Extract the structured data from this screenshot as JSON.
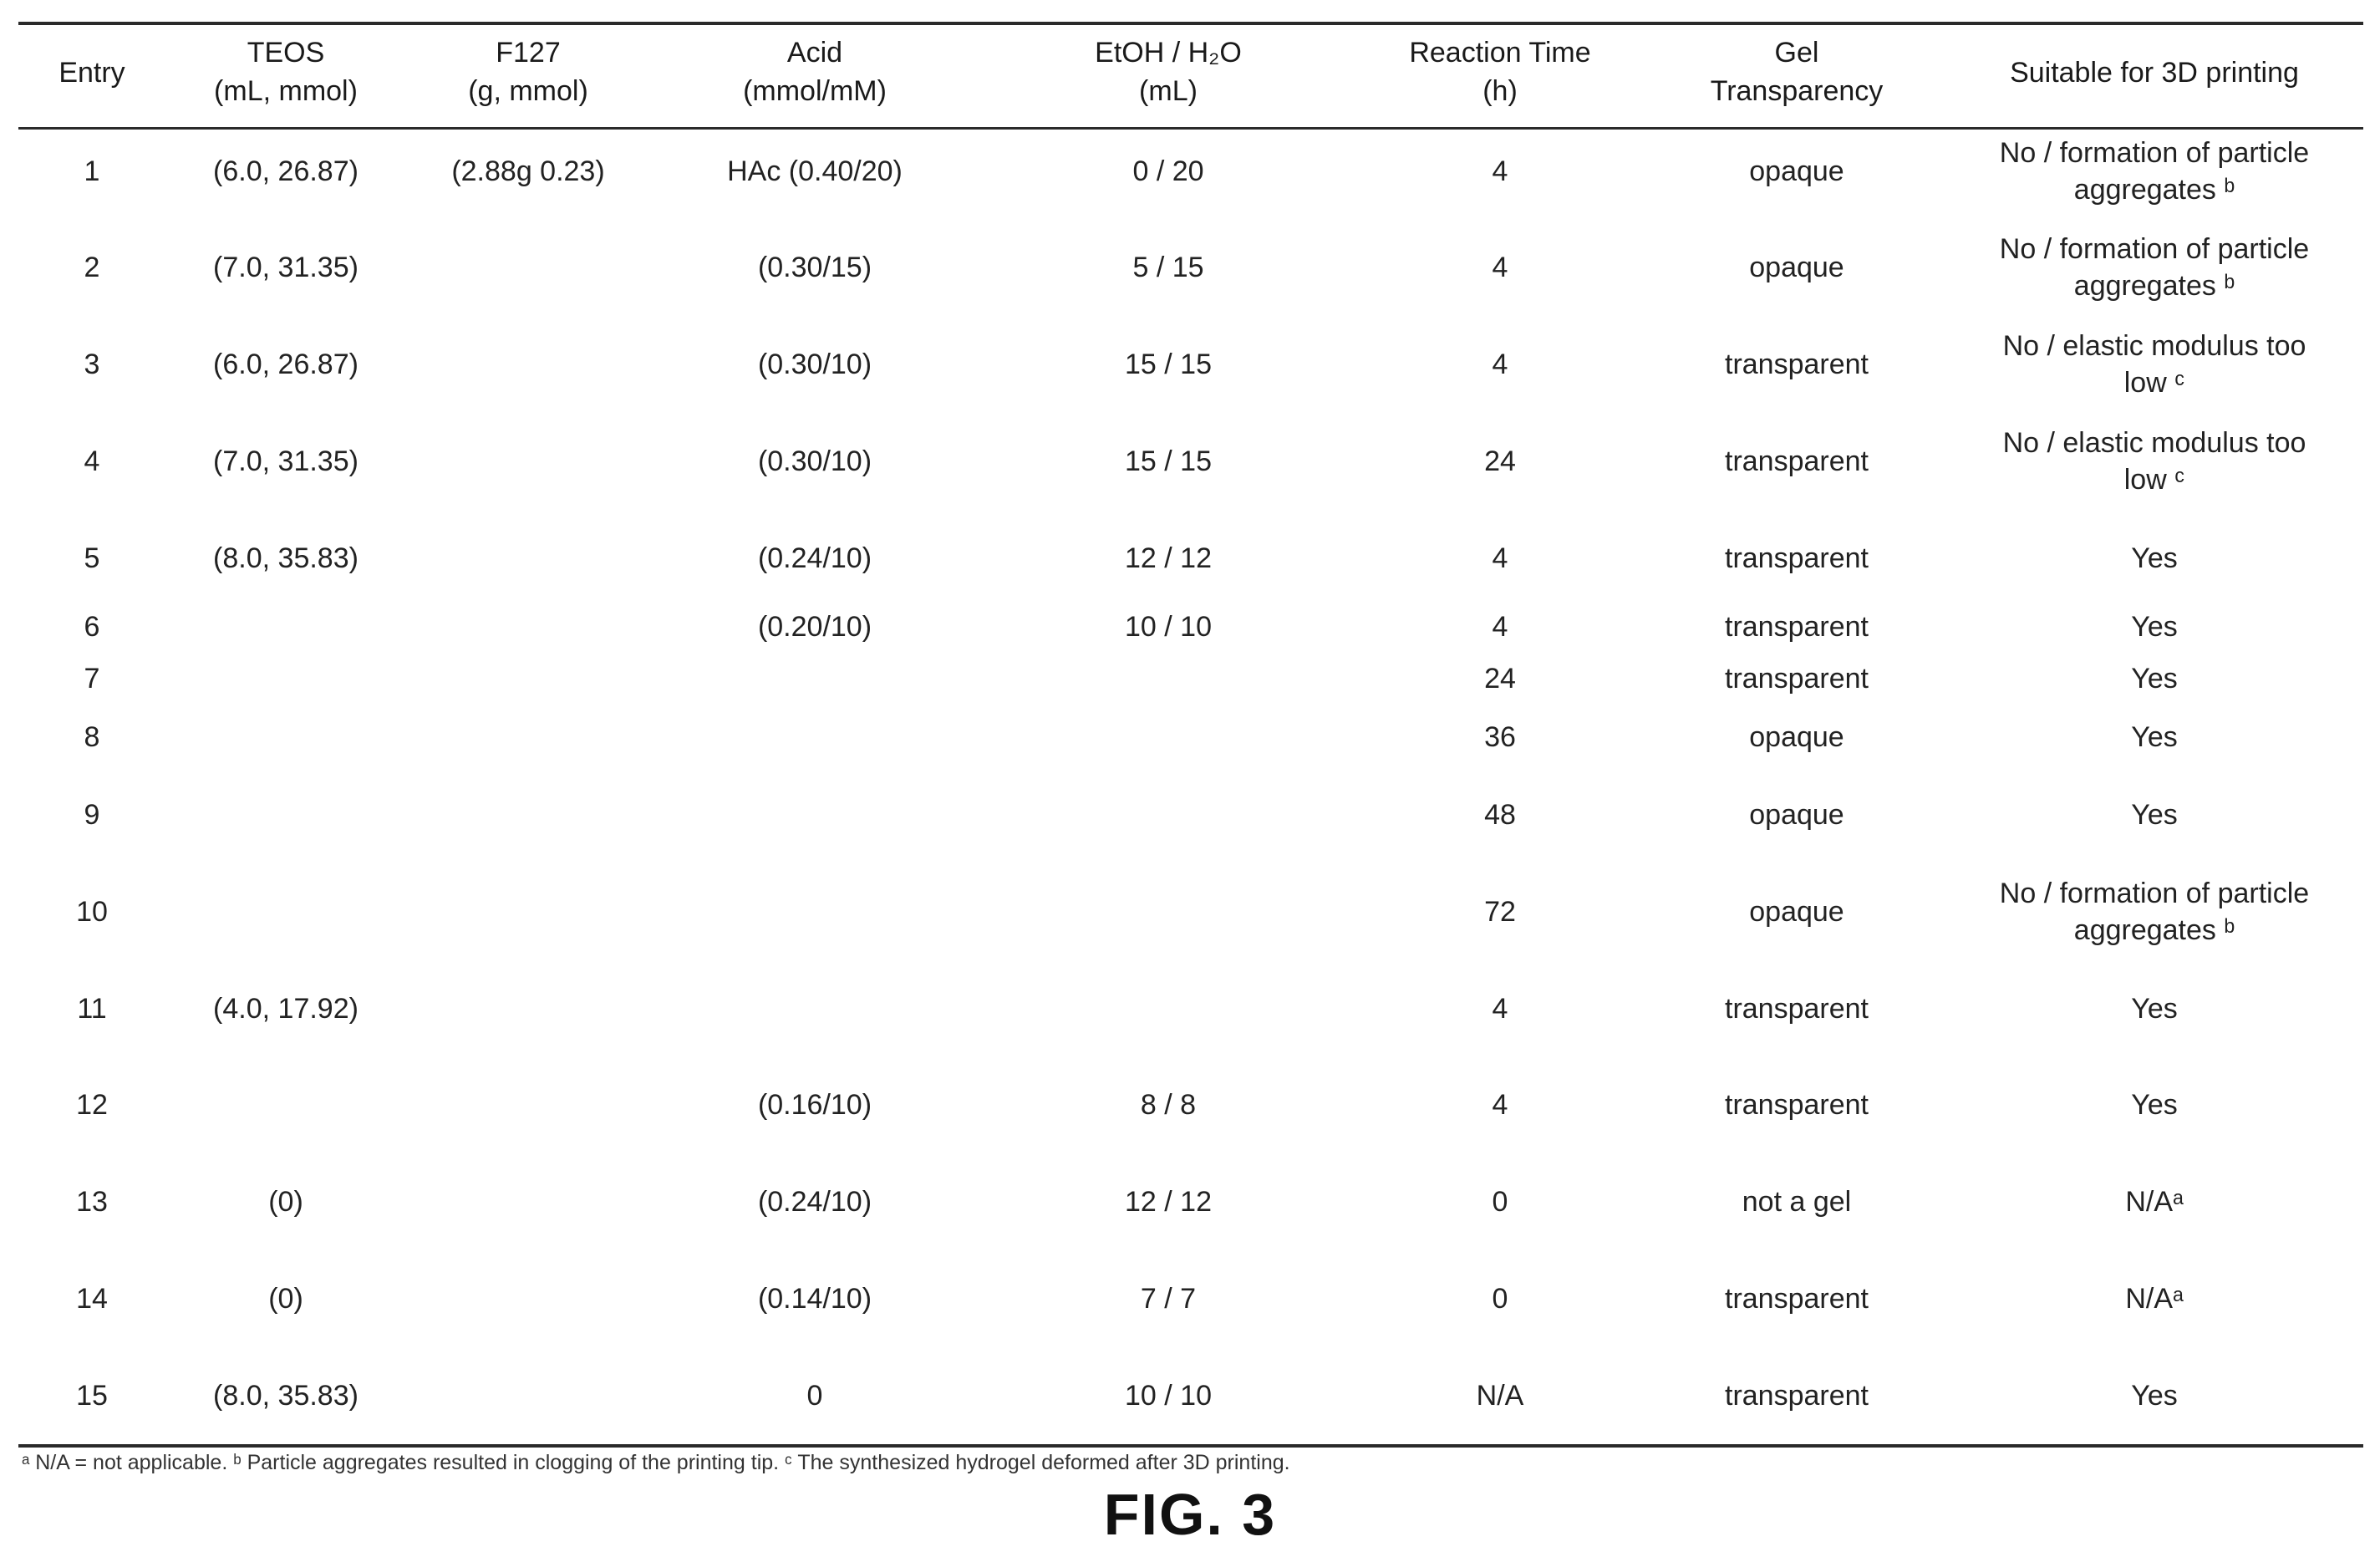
{
  "headers": [
    {
      "line1": "Entry",
      "line2": ""
    },
    {
      "line1": "TEOS",
      "line2": "(mL, mmol)"
    },
    {
      "line1": "F127",
      "line2": "(g, mmol)"
    },
    {
      "line1": "Acid",
      "line2": "(mmol/mM)"
    },
    {
      "line1": "EtOH / H₂O",
      "line2": "(mL)"
    },
    {
      "line1": "Reaction Time",
      "line2": "(h)"
    },
    {
      "line1": "Gel",
      "line2": "Transparency"
    },
    {
      "line1": "Suitable for 3D printing",
      "line2": ""
    }
  ],
  "rows": [
    {
      "entry": "1",
      "teos": "(6.0, 26.87)",
      "f127": "(2.88g 0.23)",
      "acid": "HAc (0.40/20)",
      "etoh": "0 / 20",
      "time": "4",
      "gel": "opaque",
      "suit": "No / formation of particle aggregates ᵇ"
    },
    {
      "entry": "2",
      "teos": "(7.0, 31.35)",
      "f127": "",
      "acid": "(0.30/15)",
      "etoh": "5 / 15",
      "time": "4",
      "gel": "opaque",
      "suit": "No / formation of particle aggregates ᵇ"
    },
    {
      "entry": "3",
      "teos": "(6.0, 26.87)",
      "f127": "",
      "acid": "(0.30/10)",
      "etoh": "15 / 15",
      "time": "4",
      "gel": "transparent",
      "suit": "No / elastic modulus too low ᶜ"
    },
    {
      "entry": "4",
      "teos": "(7.0, 31.35)",
      "f127": "",
      "acid": "(0.30/10)",
      "etoh": "15 / 15",
      "time": "24",
      "gel": "transparent",
      "suit": "No / elastic modulus too low ᶜ"
    },
    {
      "entry": "5",
      "teos": "(8.0, 35.83)",
      "f127": "",
      "acid": "(0.24/10)",
      "etoh": "12 / 12",
      "time": "4",
      "gel": "transparent",
      "suit": "Yes"
    },
    {
      "entry": "6",
      "teos": "",
      "f127": "",
      "acid": "(0.20/10)",
      "etoh": "10 / 10",
      "time": "4",
      "gel": "transparent",
      "suit": "Yes"
    },
    {
      "entry": "7",
      "teos": "",
      "f127": "",
      "acid": "",
      "etoh": "",
      "time": "24",
      "gel": "transparent",
      "suit": "Yes"
    },
    {
      "entry": "8",
      "teos": "",
      "f127": "",
      "acid": "",
      "etoh": "",
      "time": "36",
      "gel": "opaque",
      "suit": "Yes"
    },
    {
      "entry": "9",
      "teos": "",
      "f127": "",
      "acid": "",
      "etoh": "",
      "time": "48",
      "gel": "opaque",
      "suit": "Yes"
    },
    {
      "entry": "10",
      "teos": "",
      "f127": "",
      "acid": "",
      "etoh": "",
      "time": "72",
      "gel": "opaque",
      "suit": "No / formation of particle aggregates ᵇ"
    },
    {
      "entry": "11",
      "teos": "(4.0, 17.92)",
      "f127": "",
      "acid": "",
      "etoh": "",
      "time": "4",
      "gel": "transparent",
      "suit": "Yes"
    },
    {
      "entry": "12",
      "teos": "",
      "f127": "",
      "acid": "(0.16/10)",
      "etoh": "8 / 8",
      "time": "4",
      "gel": "transparent",
      "suit": "Yes"
    },
    {
      "entry": "13",
      "teos": "(0)",
      "f127": "",
      "acid": "(0.24/10)",
      "etoh": "12 / 12",
      "time": "0",
      "gel": "not a gel",
      "suit": "N/Aᵃ"
    },
    {
      "entry": "14",
      "teos": "(0)",
      "f127": "",
      "acid": "(0.14/10)",
      "etoh": "7 / 7",
      "time": "0",
      "gel": "transparent",
      "suit": "N/Aᵃ"
    },
    {
      "entry": "15",
      "teos": "(8.0, 35.83)",
      "f127": "",
      "acid": "0",
      "etoh": "10 / 10",
      "time": "N/A",
      "gel": "transparent",
      "suit": "Yes"
    }
  ],
  "footnote": "ᵃ N/A = not applicable. ᵇ Particle aggregates resulted in clogging of the printing tip. ᶜ The synthesized hydrogel deformed after 3D printing.",
  "figure_label": "FIG. 3"
}
